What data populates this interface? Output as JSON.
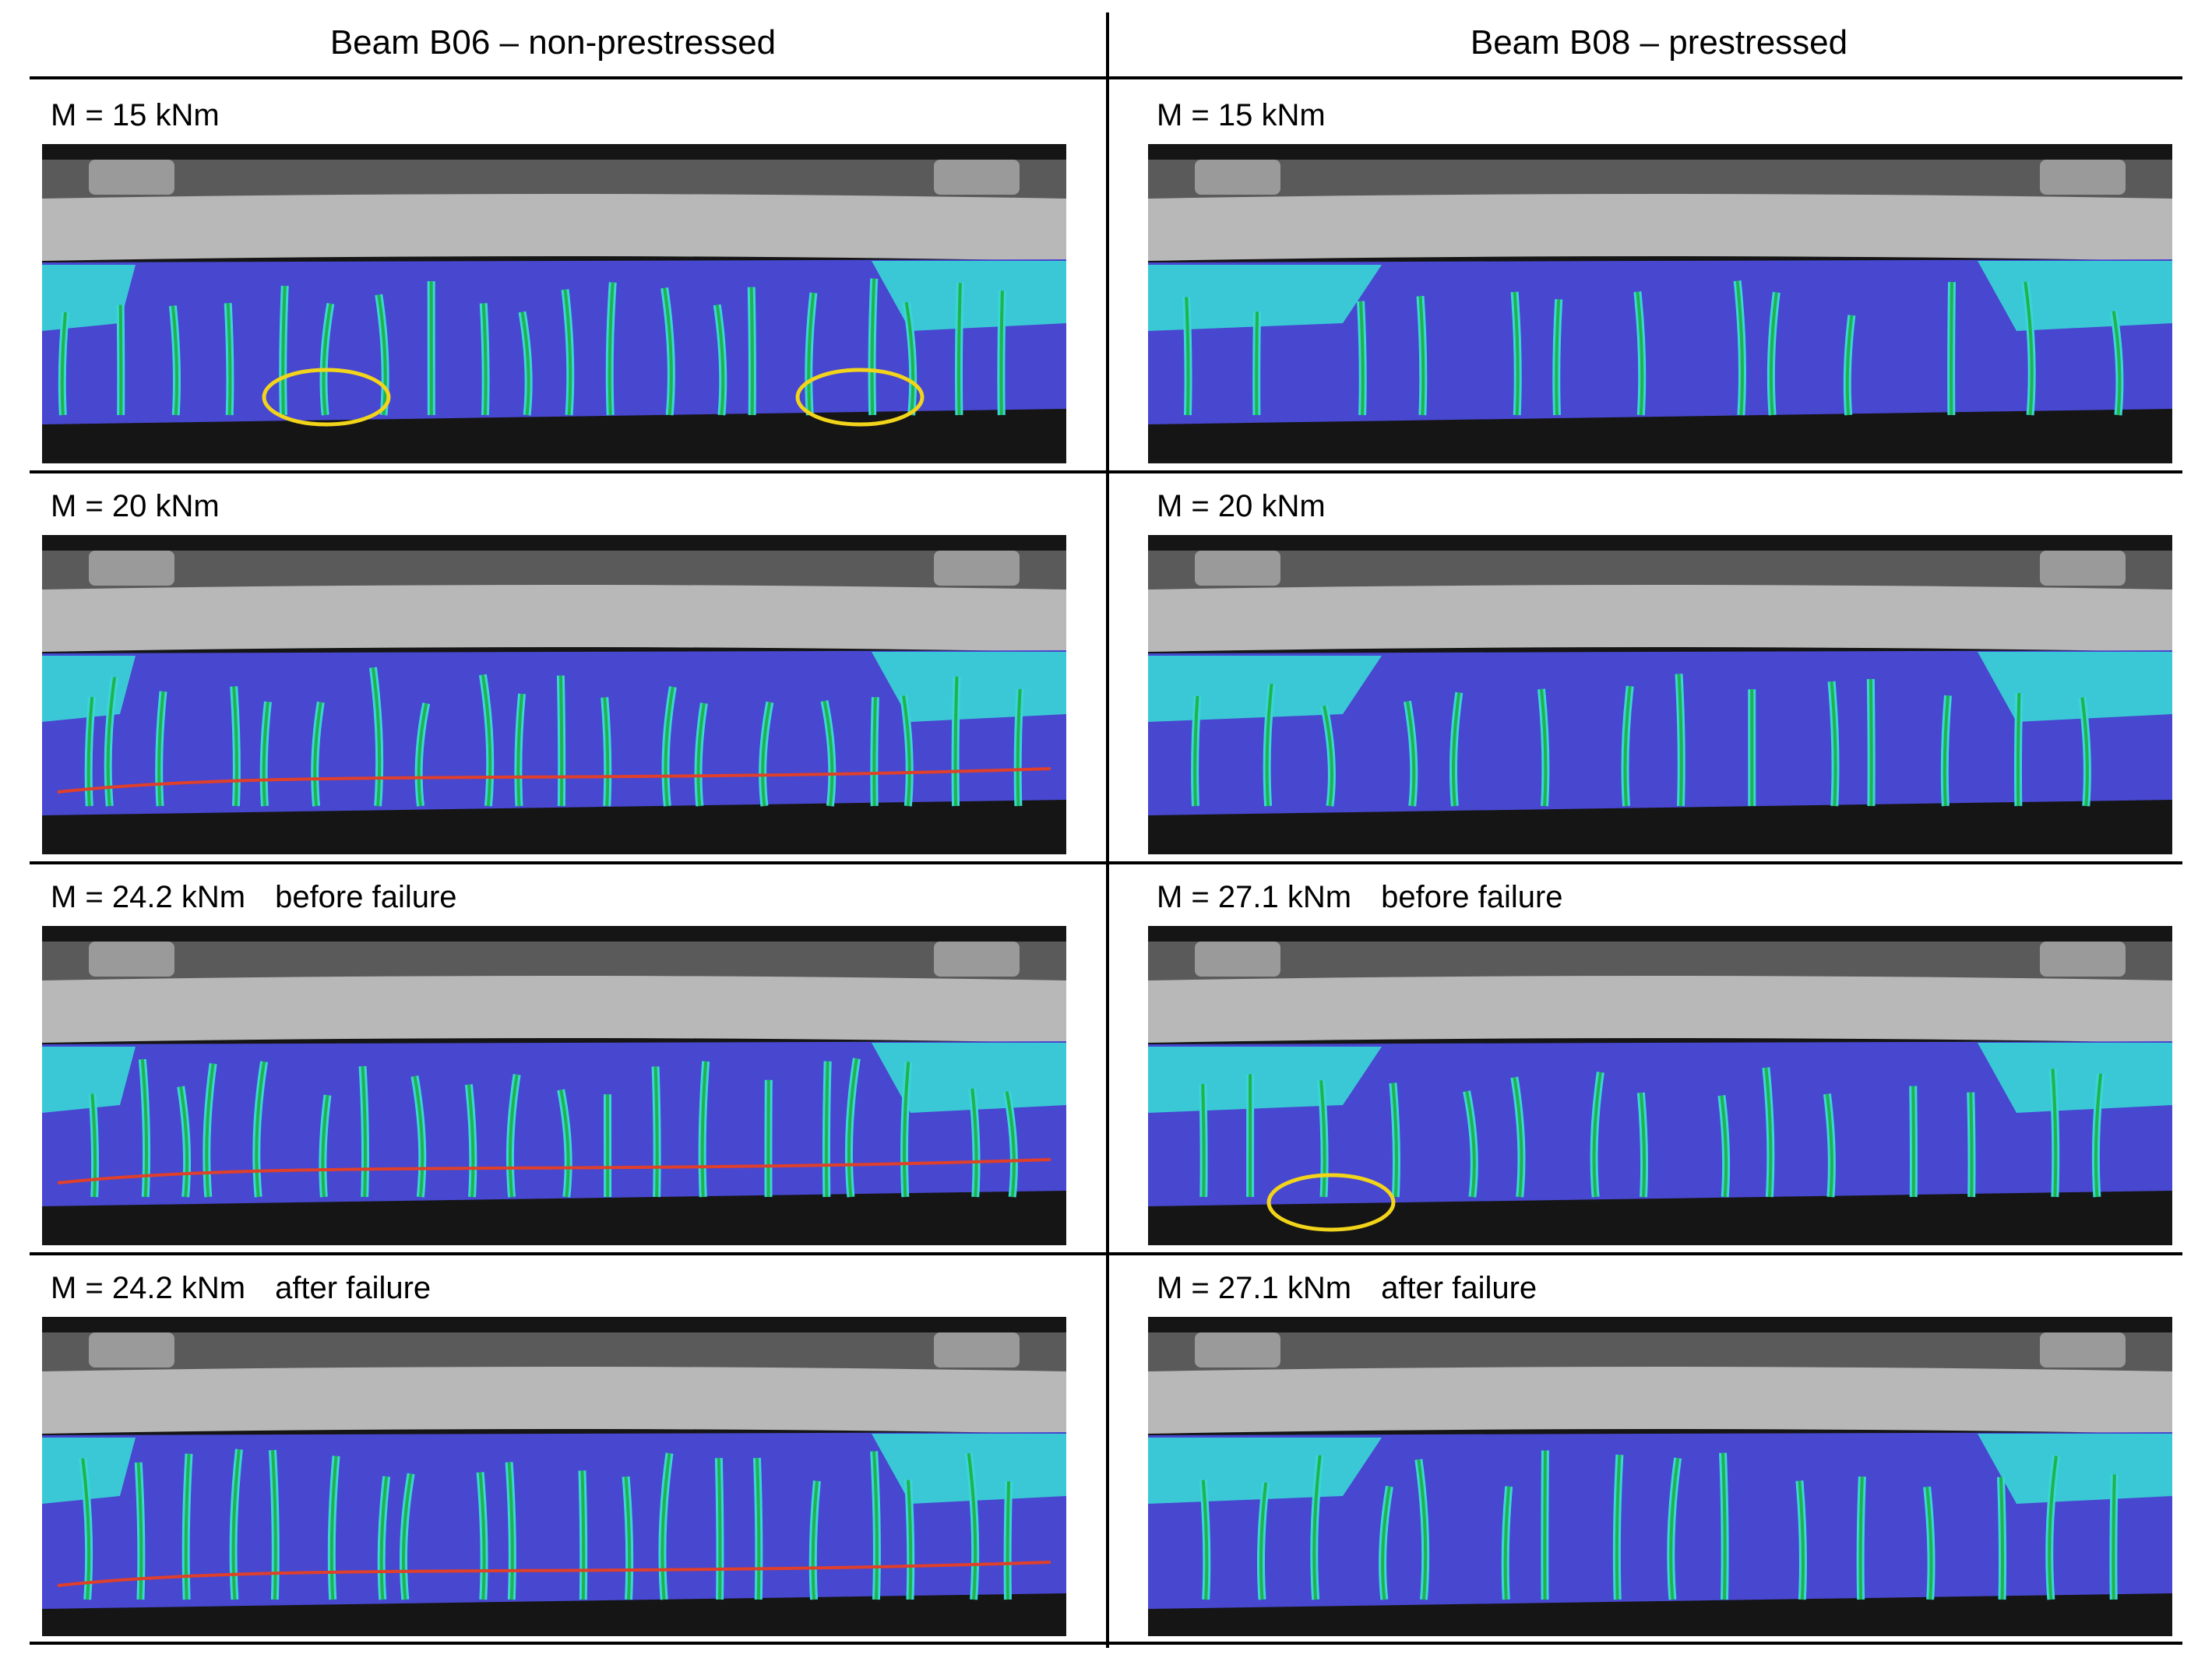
{
  "header": {
    "columns": [
      "Beam B06 – non-prestressed",
      "Beam B08 – prestressed"
    ]
  },
  "rows": [
    {
      "cells": [
        {
          "moment": "M = 15 kNm"
        },
        {
          "moment": "M = 15 kNm"
        }
      ]
    },
    {
      "cells": [
        {
          "moment": "M = 20 kNm"
        },
        {
          "moment": "M = 20 kNm"
        }
      ]
    },
    {
      "cells": [
        {
          "moment": "M = 24.2 kNm",
          "state": "before failure"
        },
        {
          "moment": "M = 27.1 kNm",
          "state": "before failure"
        }
      ]
    },
    {
      "cells": [
        {
          "moment": "M = 24.2 kNm",
          "state": "after failure"
        },
        {
          "moment": "M = 27.1 kNm",
          "state": "after failure"
        }
      ]
    }
  ]
}
